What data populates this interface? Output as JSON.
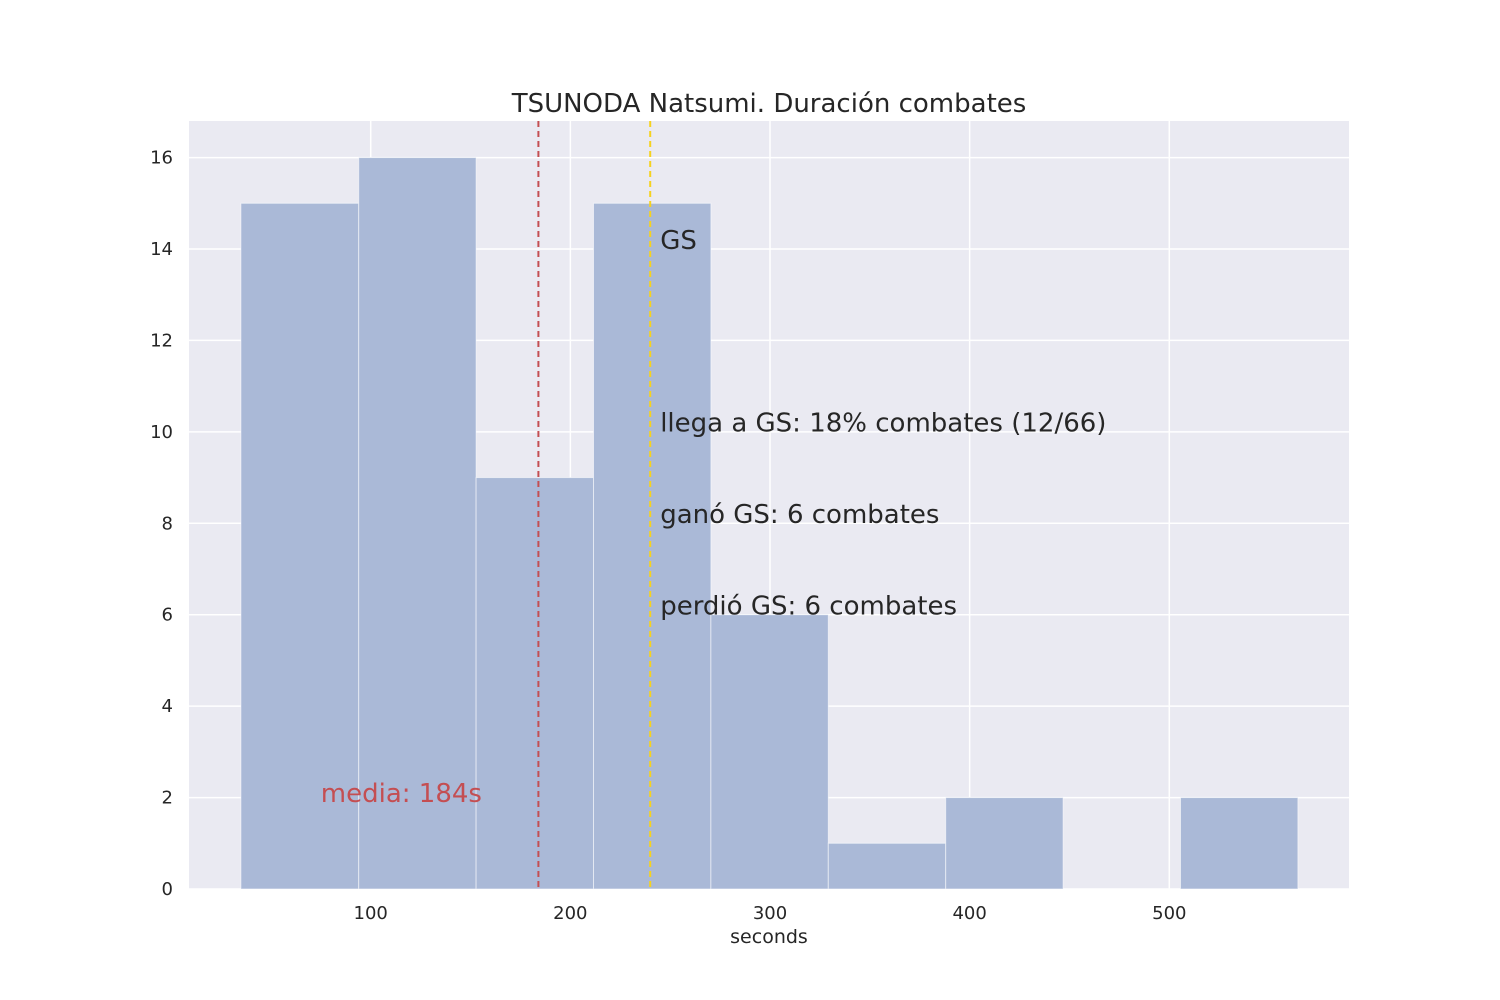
{
  "chart_data": {
    "type": "bar",
    "title": "TSUNODA Natsumi. Duración combates",
    "xlabel": "seconds",
    "ylabel": "",
    "xlim": [
      9,
      590
    ],
    "ylim": [
      0,
      16.8
    ],
    "xticks": [
      100,
      200,
      300,
      400,
      500
    ],
    "yticks": [
      0,
      2,
      4,
      6,
      8,
      10,
      12,
      14,
      16
    ],
    "grid": true,
    "bins": [
      {
        "start": 35,
        "end": 94,
        "count": 15
      },
      {
        "start": 94,
        "end": 152.8,
        "count": 16
      },
      {
        "start": 152.8,
        "end": 211.6,
        "count": 9
      },
      {
        "start": 211.6,
        "end": 270.4,
        "count": 15
      },
      {
        "start": 270.4,
        "end": 329.2,
        "count": 6
      },
      {
        "start": 329.2,
        "end": 388,
        "count": 1
      },
      {
        "start": 388,
        "end": 446.8,
        "count": 2
      },
      {
        "start": 446.8,
        "end": 505.6,
        "count": 0
      },
      {
        "start": 505.6,
        "end": 564.4,
        "count": 2
      }
    ],
    "mean_line": {
      "x": 184,
      "label": "media: 184s",
      "label_x": 75,
      "label_y": 2.1
    },
    "gs_line": {
      "x": 240
    },
    "annotations": [
      {
        "text": "GS",
        "x": 245,
        "y": 14.2
      },
      {
        "text": "llega a GS: 18% combates (12/66)",
        "x": 245,
        "y": 10.2
      },
      {
        "text": "ganó GS: 6 combates",
        "x": 245,
        "y": 8.2
      },
      {
        "text": "perdió GS: 6 combates",
        "x": 245,
        "y": 6.2
      }
    ],
    "colors": {
      "background": "#eaeaf2",
      "grid": "#ffffff",
      "bar": "#aab9d7",
      "mean_line": "#c44e52",
      "gs_line": "#f6d21e",
      "text": "#262626"
    }
  }
}
